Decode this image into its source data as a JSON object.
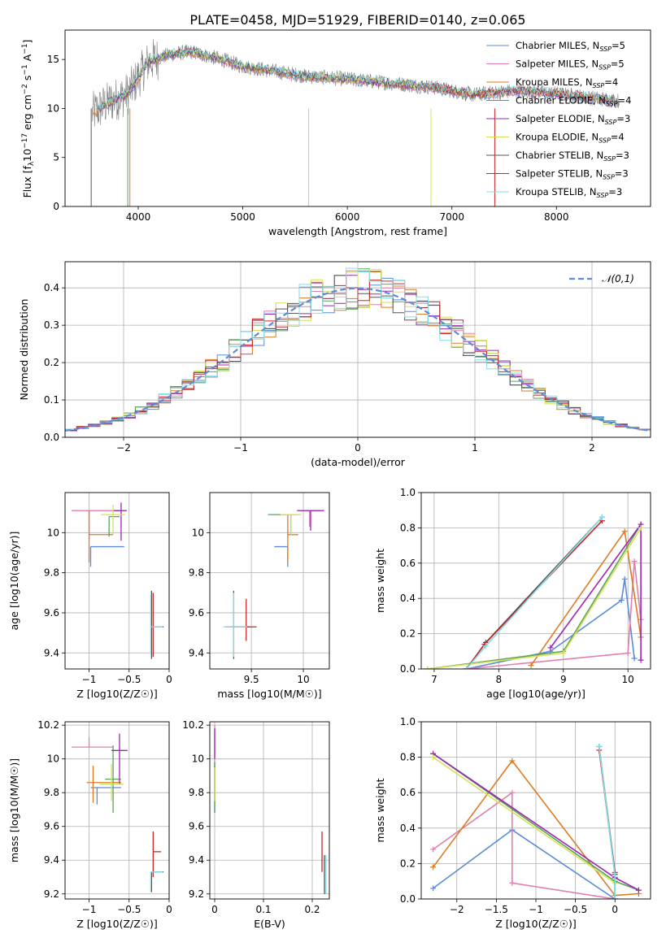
{
  "figure_title": "PLATE=0458, MJD=51929, FIBERID=0140, z=0.065",
  "series_styles": [
    {
      "name": "Chabrier MILES",
      "nssp": "5",
      "color": "#5b8bd9"
    },
    {
      "name": "Salpeter MILES",
      "nssp": "5",
      "color": "#e07fb0"
    },
    {
      "name": "Kroupa MILES",
      "nssp": "4",
      "color": "#de7b22"
    },
    {
      "name": "Chabrier ELODIE",
      "nssp": "4",
      "color": "#5aa35a"
    },
    {
      "name": "Salpeter ELODIE",
      "nssp": "3",
      "color": "#9c27b0"
    },
    {
      "name": "Kroupa ELODIE",
      "nssp": "4",
      "color": "#d4e157"
    },
    {
      "name": "Chabrier STELIB",
      "nssp": "3",
      "color": "#555555"
    },
    {
      "name": "Salpeter STELIB",
      "nssp": "3",
      "color": "#c62828"
    },
    {
      "name": "Kroupa STELIB",
      "nssp": "3",
      "color": "#80deea"
    }
  ],
  "chart_data": [
    {
      "id": "spectrum",
      "type": "line",
      "xlabel": "wavelength [Angstrom, rest frame]",
      "ylabel": "Flux [f_λ 10^-17 erg cm^-2 s^-1 A^-1]",
      "xlim": [
        3300,
        8900
      ],
      "ylim": [
        0,
        18
      ],
      "xticks": [
        4000,
        5000,
        6000,
        7000,
        8000
      ],
      "yticks": [
        0,
        5,
        10,
        15
      ],
      "legend": "top-right",
      "data_color": "#808080",
      "model_continuum": {
        "x": [
          3560,
          3700,
          3900,
          4100,
          4300,
          4500,
          4800,
          5000,
          5300,
          5600,
          6000,
          6400,
          6800,
          7200,
          7600,
          8000,
          8400,
          8600
        ],
        "y": [
          9.5,
          10.5,
          11.5,
          14.8,
          15.5,
          15.8,
          15.0,
          14.3,
          13.8,
          13.3,
          13.0,
          12.6,
          12.2,
          11.4,
          11.8,
          11.5,
          11.0,
          10.8
        ]
      }
    },
    {
      "id": "residuals",
      "type": "step",
      "xlabel": "(data-model)/error",
      "ylabel": "Normed distribution",
      "xlim": [
        -2.5,
        2.5
      ],
      "ylim": [
        0,
        0.47
      ],
      "xticks": [
        -2,
        -1,
        0,
        1,
        2
      ],
      "yticks": [
        0,
        0.1,
        0.2,
        0.3,
        0.4
      ],
      "reference": {
        "label": "𝒩(0,1)",
        "mean": 0,
        "sigma": 1,
        "color": "#5b8bd9"
      },
      "legend": "top-right"
    },
    {
      "id": "age_vs_Z",
      "type": "errorbar",
      "xlabel": "Z [log10(Z/Z☉)]",
      "ylabel": "age  [log10(age/yr)]",
      "xlim": [
        -1.3,
        0.0
      ],
      "ylim": [
        9.32,
        10.2
      ],
      "xticks": [
        -1.0,
        -0.5,
        0.0
      ],
      "yticks": [
        9.4,
        9.6,
        9.8,
        10.0
      ],
      "points": [
        {
          "x": -0.98,
          "y": 9.93,
          "xl": 0.0,
          "xh": 0.42,
          "yl": 0.1,
          "yh": 0.0,
          "c": "#5b8bd9"
        },
        {
          "x": -1.0,
          "y": 10.11,
          "xl": 0.22,
          "xh": 0.38,
          "yl": 0.15,
          "yh": 0.0,
          "c": "#e07fb0"
        },
        {
          "x": -1.0,
          "y": 9.99,
          "xl": 0.0,
          "xh": 0.3,
          "yl": 0.14,
          "yh": 0.12,
          "c": "#de7b22"
        },
        {
          "x": -0.75,
          "y": 10.08,
          "xl": 0.0,
          "xh": 0.13,
          "yl": 0.1,
          "yh": 0.0,
          "c": "#5aa35a"
        },
        {
          "x": -0.6,
          "y": 10.11,
          "xl": 0.1,
          "xh": 0.07,
          "yl": 0.15,
          "yh": 0.04,
          "c": "#9c27b0"
        },
        {
          "x": -0.7,
          "y": 10.09,
          "xl": 0.15,
          "xh": 0.15,
          "yl": 0.1,
          "yh": 0.05,
          "c": "#d4e157"
        },
        {
          "x": -0.22,
          "y": 9.53,
          "xl": 0.0,
          "xh": 0.15,
          "yl": 0.16,
          "yh": 0.18,
          "c": "#555555"
        },
        {
          "x": -0.2,
          "y": 9.53,
          "xl": 0.0,
          "xh": 0.05,
          "yl": 0.15,
          "yh": 0.17,
          "c": "#c62828"
        },
        {
          "x": -0.23,
          "y": 9.53,
          "xl": 0.0,
          "xh": 0.15,
          "yl": 0.13,
          "yh": 0.16,
          "c": "#80deea"
        }
      ]
    },
    {
      "id": "age_vs_mass",
      "type": "errorbar",
      "xlabel": "mass [log10(M/M☉)]",
      "ylabel": "",
      "xlim": [
        9.1,
        10.25
      ],
      "ylim": [
        9.32,
        10.2
      ],
      "xticks": [
        9.5,
        10.0
      ],
      "yticks": [
        9.4,
        9.6,
        9.8,
        10.0
      ],
      "points": [
        {
          "x": 9.85,
          "y": 9.93,
          "xl": 0.13,
          "xh": 0.0,
          "yl": 0.1,
          "yh": 0.0,
          "c": "#5b8bd9"
        },
        {
          "x": 10.06,
          "y": 10.11,
          "xl": 0.0,
          "xh": 0.1,
          "yl": 0.08,
          "yh": 0.0,
          "c": "#e07fb0"
        },
        {
          "x": 9.85,
          "y": 9.99,
          "xl": 0.0,
          "xh": 0.1,
          "yl": 0.14,
          "yh": 0.1,
          "c": "#de7b22"
        },
        {
          "x": 9.88,
          "y": 10.09,
          "xl": 0.22,
          "xh": 0.05,
          "yl": 0.1,
          "yh": 0.0,
          "c": "#5aa35a"
        },
        {
          "x": 10.07,
          "y": 10.11,
          "xl": 0.13,
          "xh": 0.13,
          "yl": 0.1,
          "yh": 0.0,
          "c": "#9c27b0"
        },
        {
          "x": 9.88,
          "y": 10.09,
          "xl": 0.1,
          "xh": 0.1,
          "yl": 0.1,
          "yh": 0.0,
          "c": "#d4e157"
        },
        {
          "x": 9.33,
          "y": 9.53,
          "xl": 0.08,
          "xh": 0.15,
          "yl": 0.16,
          "yh": 0.18,
          "c": "#555555"
        },
        {
          "x": 9.45,
          "y": 9.53,
          "xl": 0.1,
          "xh": 0.1,
          "yl": 0.07,
          "yh": 0.14,
          "c": "#c62828"
        },
        {
          "x": 9.33,
          "y": 9.53,
          "xl": 0.1,
          "xh": 0.13,
          "yl": 0.15,
          "yh": 0.17,
          "c": "#80deea"
        }
      ]
    },
    {
      "id": "weight_vs_age",
      "type": "line",
      "xlabel": "age  [log10(age/yr)]",
      "ylabel": "mass weight",
      "xlim": [
        6.8,
        10.35
      ],
      "ylim": [
        0,
        1
      ],
      "xticks": [
        7,
        8,
        9,
        10
      ],
      "yticks": [
        0.0,
        0.2,
        0.4,
        0.6,
        0.8,
        1.0
      ],
      "series": [
        {
          "c": "#5b8bd9",
          "x": [
            7.5,
            8.8,
            9.9,
            9.95,
            10.1
          ],
          "y": [
            0.0,
            0.1,
            0.39,
            0.51,
            0.06
          ]
        },
        {
          "c": "#e07fb0",
          "x": [
            7.5,
            10.0,
            10.1,
            10.2
          ],
          "y": [
            0.0,
            0.09,
            0.61,
            0.28
          ]
        },
        {
          "c": "#de7b22",
          "x": [
            8.5,
            9.95,
            10.2
          ],
          "y": [
            0.02,
            0.78,
            0.18
          ]
        },
        {
          "c": "#5aa35a",
          "x": [
            6.9,
            9.0,
            10.2
          ],
          "y": [
            0.0,
            0.1,
            0.82
          ]
        },
        {
          "c": "#9c27b0",
          "x": [
            8.8,
            10.2,
            10.2
          ],
          "y": [
            0.12,
            0.82,
            0.05
          ]
        },
        {
          "c": "#d4e157",
          "x": [
            6.9,
            9.0,
            10.2
          ],
          "y": [
            0.0,
            0.09,
            0.8
          ]
        },
        {
          "c": "#555555",
          "x": [
            7.5,
            7.8,
            9.6
          ],
          "y": [
            0.0,
            0.15,
            0.86
          ]
        },
        {
          "c": "#c62828",
          "x": [
            7.5,
            7.78,
            9.6
          ],
          "y": [
            0.0,
            0.14,
            0.84
          ]
        },
        {
          "c": "#80deea",
          "x": [
            7.5,
            7.8,
            9.6
          ],
          "y": [
            0.0,
            0.13,
            0.86
          ]
        }
      ]
    },
    {
      "id": "mass_vs_Z",
      "type": "errorbar",
      "xlabel": "Z [log10(Z/Z☉)]",
      "ylabel": "mass [log10(M/M☉)]",
      "xlim": [
        -1.3,
        0.0
      ],
      "ylim": [
        9.17,
        10.22
      ],
      "xticks": [
        -1.0,
        -0.5,
        0.0
      ],
      "yticks": [
        9.2,
        9.4,
        9.6,
        9.8,
        10.0,
        10.2
      ],
      "points": [
        {
          "x": -0.9,
          "y": 9.83,
          "xl": 0.08,
          "xh": 0.3,
          "yl": 0.1,
          "yh": 0.0,
          "c": "#5b8bd9"
        },
        {
          "x": -1.0,
          "y": 10.07,
          "xl": 0.22,
          "xh": 0.3,
          "yl": 0.0,
          "yh": 0.06,
          "c": "#e07fb0"
        },
        {
          "x": -0.95,
          "y": 9.86,
          "xl": 0.08,
          "xh": 0.35,
          "yl": 0.12,
          "yh": 0.1,
          "c": "#de7b22"
        },
        {
          "x": -0.7,
          "y": 9.88,
          "xl": 0.1,
          "xh": 0.1,
          "yl": 0.2,
          "yh": 0.2,
          "c": "#5aa35a"
        },
        {
          "x": -0.62,
          "y": 10.05,
          "xl": 0.1,
          "xh": 0.1,
          "yl": 0.2,
          "yh": 0.1,
          "c": "#9c27b0"
        },
        {
          "x": -0.72,
          "y": 9.85,
          "xl": 0.15,
          "xh": 0.15,
          "yl": 0.1,
          "yh": 0.12,
          "c": "#d4e157"
        },
        {
          "x": -0.22,
          "y": 9.33,
          "xl": 0.0,
          "xh": 0.15,
          "yl": 0.12,
          "yh": 0.0,
          "c": "#555555"
        },
        {
          "x": -0.2,
          "y": 9.45,
          "xl": 0.0,
          "xh": 0.1,
          "yl": 0.15,
          "yh": 0.12,
          "c": "#c62828"
        },
        {
          "x": -0.23,
          "y": 9.33,
          "xl": 0.0,
          "xh": 0.15,
          "yl": 0.12,
          "yh": 0.0,
          "c": "#80deea"
        }
      ]
    },
    {
      "id": "mass_vs_EBV",
      "type": "errorbar",
      "xlabel": "E(B-V)",
      "ylabel": "",
      "xlim": [
        -0.01,
        0.235
      ],
      "ylim": [
        9.17,
        10.22
      ],
      "xticks": [
        0.0,
        0.1,
        0.2
      ],
      "yticks": [
        9.2,
        9.4,
        9.6,
        9.8,
        10.0,
        10.2
      ],
      "points": [
        {
          "x": 0.0,
          "y": 9.83,
          "xl": 0,
          "xh": 0,
          "yl": 0.15,
          "yh": 0.15,
          "c": "#5b8bd9"
        },
        {
          "x": 0.0,
          "y": 10.07,
          "xl": 0,
          "xh": 0,
          "yl": 0.1,
          "yh": 0.13,
          "c": "#e07fb0"
        },
        {
          "x": 0.0,
          "y": 9.86,
          "xl": 0,
          "xh": 0,
          "yl": 0.1,
          "yh": 0.1,
          "c": "#de7b22"
        },
        {
          "x": 0.0,
          "y": 9.88,
          "xl": 0,
          "xh": 0,
          "yl": 0.2,
          "yh": 0.1,
          "c": "#5aa35a"
        },
        {
          "x": 0.0,
          "y": 10.05,
          "xl": 0,
          "xh": 0,
          "yl": 0.05,
          "yh": 0.13,
          "c": "#9c27b0"
        },
        {
          "x": 0.0,
          "y": 9.85,
          "xl": 0,
          "xh": 0,
          "yl": 0.1,
          "yh": 0.1,
          "c": "#d4e157"
        },
        {
          "x": 0.225,
          "y": 9.33,
          "xl": 0,
          "xh": 0,
          "yl": 0.13,
          "yh": 0.1,
          "c": "#555555"
        },
        {
          "x": 0.22,
          "y": 9.45,
          "xl": 0,
          "xh": 0,
          "yl": 0.12,
          "yh": 0.12,
          "c": "#c62828"
        },
        {
          "x": 0.228,
          "y": 9.33,
          "xl": 0,
          "xh": 0,
          "yl": 0.13,
          "yh": 0.1,
          "c": "#80deea"
        }
      ]
    },
    {
      "id": "weight_vs_Z",
      "type": "line",
      "xlabel": "Z [log10(Z/Z☉)]",
      "ylabel": "mass weight",
      "xlim": [
        -2.45,
        0.45
      ],
      "ylim": [
        0,
        1
      ],
      "xticks": [
        -2.0,
        -1.5,
        -1.0,
        -0.5,
        0.0
      ],
      "yticks": [
        0.0,
        0.2,
        0.4,
        0.6,
        0.8,
        1.0
      ],
      "series": [
        {
          "c": "#5b8bd9",
          "x": [
            -2.3,
            -1.3,
            0.0
          ],
          "y": [
            0.06,
            0.39,
            0.0
          ]
        },
        {
          "c": "#e07fb0",
          "x": [
            -2.3,
            -1.3,
            -1.3,
            0.0
          ],
          "y": [
            0.28,
            0.6,
            0.09,
            0.0
          ]
        },
        {
          "c": "#de7b22",
          "x": [
            -2.3,
            -1.3,
            0.0,
            0.3
          ],
          "y": [
            0.18,
            0.78,
            0.02,
            0.03
          ]
        },
        {
          "c": "#5aa35a",
          "x": [
            -2.3,
            0.0,
            0.3
          ],
          "y": [
            0.82,
            0.1,
            0.05
          ]
        },
        {
          "c": "#9c27b0",
          "x": [
            -2.3,
            0.0,
            0.3
          ],
          "y": [
            0.82,
            0.12,
            0.05
          ]
        },
        {
          "c": "#d4e157",
          "x": [
            -2.3,
            0.0,
            0.0
          ],
          "y": [
            0.8,
            0.09,
            0.0
          ]
        },
        {
          "c": "#555555",
          "x": [
            -0.2,
            0.0,
            0.0
          ],
          "y": [
            0.86,
            0.15,
            0.0
          ]
        },
        {
          "c": "#c62828",
          "x": [
            -0.2,
            0.0,
            0.0
          ],
          "y": [
            0.84,
            0.14,
            0.0
          ]
        },
        {
          "c": "#80deea",
          "x": [
            -0.2,
            0.0,
            0.0
          ],
          "y": [
            0.86,
            0.13,
            0.0
          ]
        }
      ]
    }
  ]
}
